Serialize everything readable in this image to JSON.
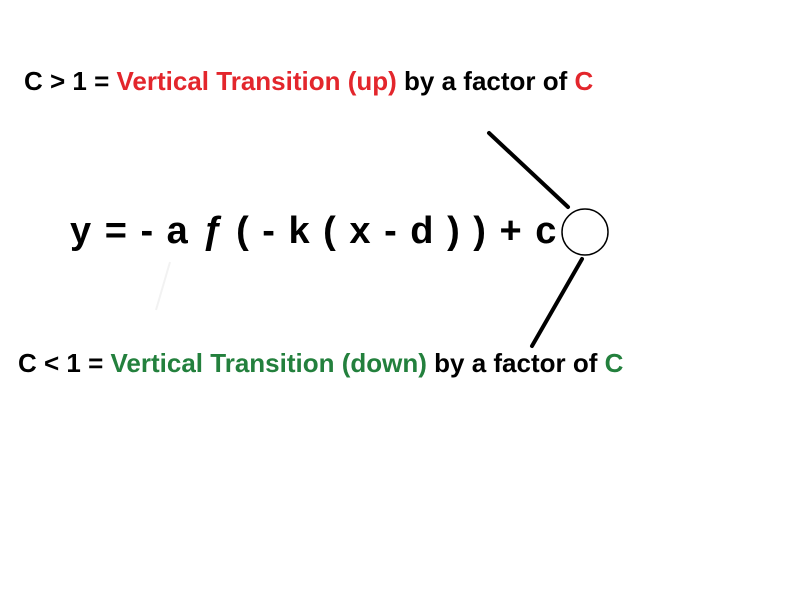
{
  "top_annotation": {
    "condition": "C > 1 =",
    "description": "Vertical Transition (up)",
    "middle": "by a factor of",
    "variable": "C",
    "color": "#e3262c"
  },
  "equation": {
    "prefix": "y = - a",
    "function": "ƒ",
    "body": "( - k ( x - d ) ) +",
    "constant": "c"
  },
  "bottom_annotation": {
    "condition": "C < 1 =",
    "description": "Vertical Transition (down)",
    "middle": "by a factor of",
    "variable": "C",
    "color": "#23803d"
  }
}
